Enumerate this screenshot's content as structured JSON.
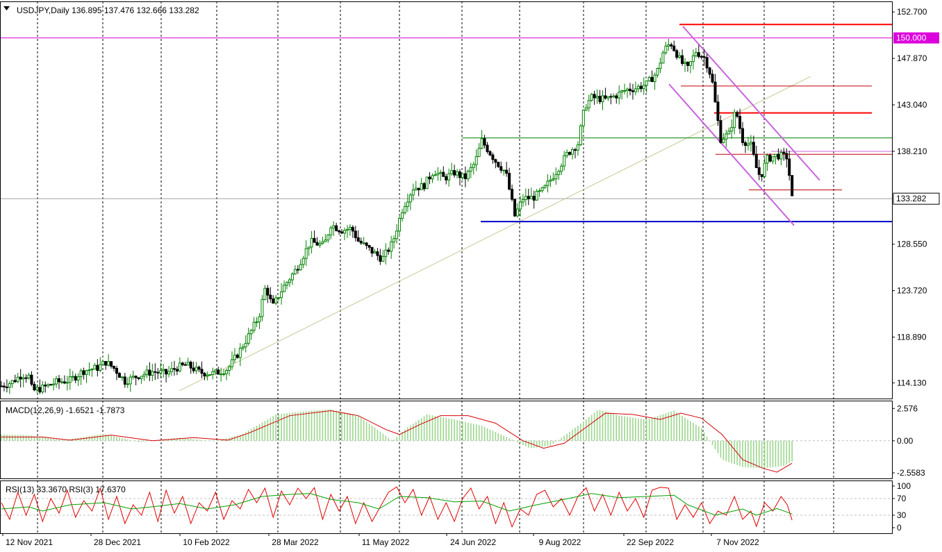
{
  "chart_data": {
    "type": "candlestick",
    "symbol": "USDJPY",
    "timeframe": "Daily",
    "ohlc_values": [
      "136.895",
      "137.476",
      "132.666",
      "133.282"
    ],
    "price_axis": {
      "ticks": [
        "152.700",
        "147.870",
        "143.040",
        "138.210",
        "133.282",
        "128.550",
        "123.720",
        "118.890",
        "114.130"
      ],
      "range": [
        112.5,
        153.8
      ],
      "current_price": "133.282",
      "marker_150": "150.000"
    },
    "x_ticks": [
      "12 Nov 2021",
      "28 Dec 2021",
      "10 Feb 2022",
      "28 Mar 2022",
      "11 May 2022",
      "24 Jun 2022",
      "9 Aug 2022",
      "22 Sep 2022",
      "7 Nov 2022"
    ],
    "grid": "vertical dashed",
    "price_path": [
      [
        0,
        113.8
      ],
      [
        15,
        114.2
      ],
      [
        30,
        115.0
      ],
      [
        40,
        114.8
      ],
      [
        45,
        113.3
      ],
      [
        60,
        113.6
      ],
      [
        80,
        114.2
      ],
      [
        100,
        114.4
      ],
      [
        120,
        115.4
      ],
      [
        140,
        115.7
      ],
      [
        152,
        116.3
      ],
      [
        165,
        115.6
      ],
      [
        180,
        114.3
      ],
      [
        200,
        114.9
      ],
      [
        220,
        115.3
      ],
      [
        240,
        115.1
      ],
      [
        255,
        115.7
      ],
      [
        270,
        116.0
      ],
      [
        290,
        115.2
      ],
      [
        310,
        115.1
      ],
      [
        330,
        115.6
      ],
      [
        345,
        117.2
      ],
      [
        360,
        119.0
      ],
      [
        375,
        121.0
      ],
      [
        385,
        124.2
      ],
      [
        395,
        122.0
      ],
      [
        410,
        124.0
      ],
      [
        430,
        126.0
      ],
      [
        450,
        128.8
      ],
      [
        470,
        128.4
      ],
      [
        480,
        130.6
      ],
      [
        495,
        130.0
      ],
      [
        510,
        130.2
      ],
      [
        520,
        128.9
      ],
      [
        540,
        127.8
      ],
      [
        555,
        127.0
      ],
      [
        570,
        128.7
      ],
      [
        585,
        132.4
      ],
      [
        600,
        134.4
      ],
      [
        615,
        134.6
      ],
      [
        630,
        136.2
      ],
      [
        645,
        135.4
      ],
      [
        660,
        136.0
      ],
      [
        675,
        135.4
      ],
      [
        690,
        137.0
      ],
      [
        700,
        139.3
      ],
      [
        720,
        137.2
      ],
      [
        735,
        136.0
      ],
      [
        748,
        131.5
      ],
      [
        760,
        133.3
      ],
      [
        775,
        133.4
      ],
      [
        790,
        134.2
      ],
      [
        810,
        136.3
      ],
      [
        825,
        138.0
      ],
      [
        840,
        139.0
      ],
      [
        850,
        142.9
      ],
      [
        860,
        143.8
      ],
      [
        880,
        143.6
      ],
      [
        895,
        144.0
      ],
      [
        910,
        144.6
      ],
      [
        925,
        144.8
      ],
      [
        940,
        145.2
      ],
      [
        955,
        146.4
      ],
      [
        965,
        148.7
      ],
      [
        975,
        149.5
      ],
      [
        983,
        148.5
      ],
      [
        990,
        147.5
      ],
      [
        1000,
        146.8
      ],
      [
        1012,
        148.6
      ],
      [
        1025,
        147.9
      ],
      [
        1035,
        145.8
      ],
      [
        1042,
        142.2
      ],
      [
        1048,
        139.5
      ],
      [
        1060,
        140.0
      ],
      [
        1070,
        142.5
      ],
      [
        1080,
        139.4
      ],
      [
        1092,
        138.8
      ],
      [
        1100,
        136.5
      ],
      [
        1106,
        135.5
      ],
      [
        1115,
        137.4
      ],
      [
        1130,
        137.8
      ],
      [
        1145,
        137.6
      ],
      [
        1152,
        133.3
      ]
    ],
    "macd": {
      "label": "MACD(12,26,9) -1.6521 -1.7873",
      "ticks": [
        "2.576",
        "0.00",
        "-2.5583"
      ],
      "range": [
        -3.0,
        3.2
      ],
      "hist_path": [
        [
          0,
          0.5
        ],
        [
          40,
          0.45
        ],
        [
          90,
          0.05
        ],
        [
          150,
          0.55
        ],
        [
          200,
          -0.1
        ],
        [
          260,
          0.25
        ],
        [
          310,
          -0.05
        ],
        [
          350,
          0.5
        ],
        [
          400,
          2.1
        ],
        [
          450,
          2.4
        ],
        [
          480,
          2.5
        ],
        [
          520,
          2.0
        ],
        [
          570,
          0.0
        ],
        [
          590,
          1.0
        ],
        [
          620,
          2.1
        ],
        [
          660,
          1.7
        ],
        [
          700,
          1.2
        ],
        [
          740,
          0.2
        ],
        [
          770,
          -0.6
        ],
        [
          800,
          -0.4
        ],
        [
          840,
          1.2
        ],
        [
          870,
          2.5
        ],
        [
          900,
          2.0
        ],
        [
          940,
          1.7
        ],
        [
          980,
          2.4
        ],
        [
          1020,
          1.0
        ],
        [
          1050,
          -1.5
        ],
        [
          1080,
          -2.1
        ],
        [
          1110,
          -2.2
        ],
        [
          1140,
          -2.0
        ],
        [
          1152,
          -1.65
        ]
      ],
      "signal_path": [
        [
          0,
          0.3
        ],
        [
          60,
          0.3
        ],
        [
          100,
          0.05
        ],
        [
          160,
          0.45
        ],
        [
          220,
          0.0
        ],
        [
          280,
          0.25
        ],
        [
          330,
          0.05
        ],
        [
          360,
          0.6
        ],
        [
          420,
          2.0
        ],
        [
          480,
          2.4
        ],
        [
          520,
          2.0
        ],
        [
          560,
          0.9
        ],
        [
          580,
          0.5
        ],
        [
          610,
          1.3
        ],
        [
          640,
          2.0
        ],
        [
          680,
          2.0
        ],
        [
          720,
          1.4
        ],
        [
          760,
          0.0
        ],
        [
          790,
          -0.6
        ],
        [
          820,
          -0.2
        ],
        [
          850,
          1.0
        ],
        [
          880,
          2.2
        ],
        [
          920,
          2.1
        ],
        [
          960,
          1.7
        ],
        [
          990,
          2.2
        ],
        [
          1020,
          1.8
        ],
        [
          1050,
          0.5
        ],
        [
          1080,
          -1.5
        ],
        [
          1110,
          -2.2
        ],
        [
          1130,
          -2.5
        ],
        [
          1152,
          -1.79
        ]
      ]
    },
    "rsi": {
      "label": "RSI(13) 33.3670  RSI(3) 17.6370",
      "ticks": [
        "100",
        "70",
        "30",
        "0"
      ],
      "range": [
        0,
        100
      ],
      "rsi13_path": [
        [
          0,
          45
        ],
        [
          40,
          50
        ],
        [
          60,
          40
        ],
        [
          100,
          55
        ],
        [
          150,
          60
        ],
        [
          190,
          45
        ],
        [
          230,
          52
        ],
        [
          260,
          58
        ],
        [
          300,
          45
        ],
        [
          340,
          55
        ],
        [
          380,
          75
        ],
        [
          420,
          80
        ],
        [
          450,
          82
        ],
        [
          480,
          68
        ],
        [
          520,
          60
        ],
        [
          550,
          45
        ],
        [
          580,
          75
        ],
        [
          620,
          72
        ],
        [
          660,
          62
        ],
        [
          700,
          64
        ],
        [
          740,
          40
        ],
        [
          780,
          55
        ],
        [
          820,
          68
        ],
        [
          860,
          82
        ],
        [
          900,
          72
        ],
        [
          940,
          75
        ],
        [
          980,
          78
        ],
        [
          1000,
          55
        ],
        [
          1040,
          30
        ],
        [
          1080,
          45
        ],
        [
          1100,
          30
        ],
        [
          1130,
          46
        ],
        [
          1152,
          33
        ]
      ],
      "rsi3_path": [
        [
          0,
          60
        ],
        [
          12,
          20
        ],
        [
          24,
          85
        ],
        [
          36,
          30
        ],
        [
          48,
          80
        ],
        [
          60,
          15
        ],
        [
          72,
          70
        ],
        [
          84,
          35
        ],
        [
          96,
          90
        ],
        [
          108,
          25
        ],
        [
          120,
          65
        ],
        [
          132,
          40
        ],
        [
          144,
          95
        ],
        [
          156,
          20
        ],
        [
          168,
          75
        ],
        [
          180,
          10
        ],
        [
          192,
          55
        ],
        [
          204,
          30
        ],
        [
          216,
          85
        ],
        [
          228,
          15
        ],
        [
          240,
          90
        ],
        [
          252,
          35
        ],
        [
          264,
          75
        ],
        [
          276,
          10
        ],
        [
          288,
          60
        ],
        [
          300,
          40
        ],
        [
          312,
          85
        ],
        [
          324,
          20
        ],
        [
          336,
          65
        ],
        [
          348,
          45
        ],
        [
          360,
          92
        ],
        [
          372,
          60
        ],
        [
          384,
          95
        ],
        [
          396,
          25
        ],
        [
          408,
          88
        ],
        [
          420,
          55
        ],
        [
          432,
          95
        ],
        [
          444,
          70
        ],
        [
          456,
          96
        ],
        [
          468,
          20
        ],
        [
          480,
          80
        ],
        [
          492,
          40
        ],
        [
          504,
          75
        ],
        [
          516,
          10
        ],
        [
          528,
          60
        ],
        [
          540,
          15
        ],
        [
          552,
          50
        ],
        [
          564,
          85
        ],
        [
          576,
          98
        ],
        [
          588,
          60
        ],
        [
          600,
          92
        ],
        [
          612,
          30
        ],
        [
          624,
          75
        ],
        [
          636,
          20
        ],
        [
          648,
          60
        ],
        [
          660,
          15
        ],
        [
          672,
          70
        ],
        [
          684,
          95
        ],
        [
          696,
          45
        ],
        [
          708,
          75
        ],
        [
          720,
          10
        ],
        [
          732,
          60
        ],
        [
          744,
          2
        ],
        [
          756,
          45
        ],
        [
          768,
          30
        ],
        [
          780,
          80
        ],
        [
          792,
          90
        ],
        [
          804,
          50
        ],
        [
          816,
          70
        ],
        [
          828,
          30
        ],
        [
          840,
          75
        ],
        [
          852,
          96
        ],
        [
          864,
          40
        ],
        [
          876,
          80
        ],
        [
          888,
          30
        ],
        [
          900,
          85
        ],
        [
          912,
          40
        ],
        [
          924,
          70
        ],
        [
          936,
          25
        ],
        [
          948,
          90
        ],
        [
          960,
          97
        ],
        [
          972,
          95
        ],
        [
          984,
          20
        ],
        [
          996,
          55
        ],
        [
          1008,
          25
        ],
        [
          1020,
          60
        ],
        [
          1032,
          10
        ],
        [
          1044,
          40
        ],
        [
          1056,
          30
        ],
        [
          1068,
          75
        ],
        [
          1080,
          20
        ],
        [
          1092,
          40
        ],
        [
          1100,
          3
        ],
        [
          1112,
          60
        ],
        [
          1124,
          40
        ],
        [
          1136,
          75
        ],
        [
          1145,
          55
        ],
        [
          1152,
          18
        ]
      ]
    },
    "colors": {
      "bull": "#008000",
      "bear": "#000000",
      "resistance": "#ff0000",
      "support": "#0000c8",
      "channel": "#c864dc",
      "marker_150": "#dc00dc",
      "trendline": "#c8c896",
      "green_level": "#008000",
      "macd_hist": "#9bd68c",
      "macd_signal": "#d40000",
      "rsi13": "#00a000",
      "rsi3": "#e00000"
    }
  }
}
